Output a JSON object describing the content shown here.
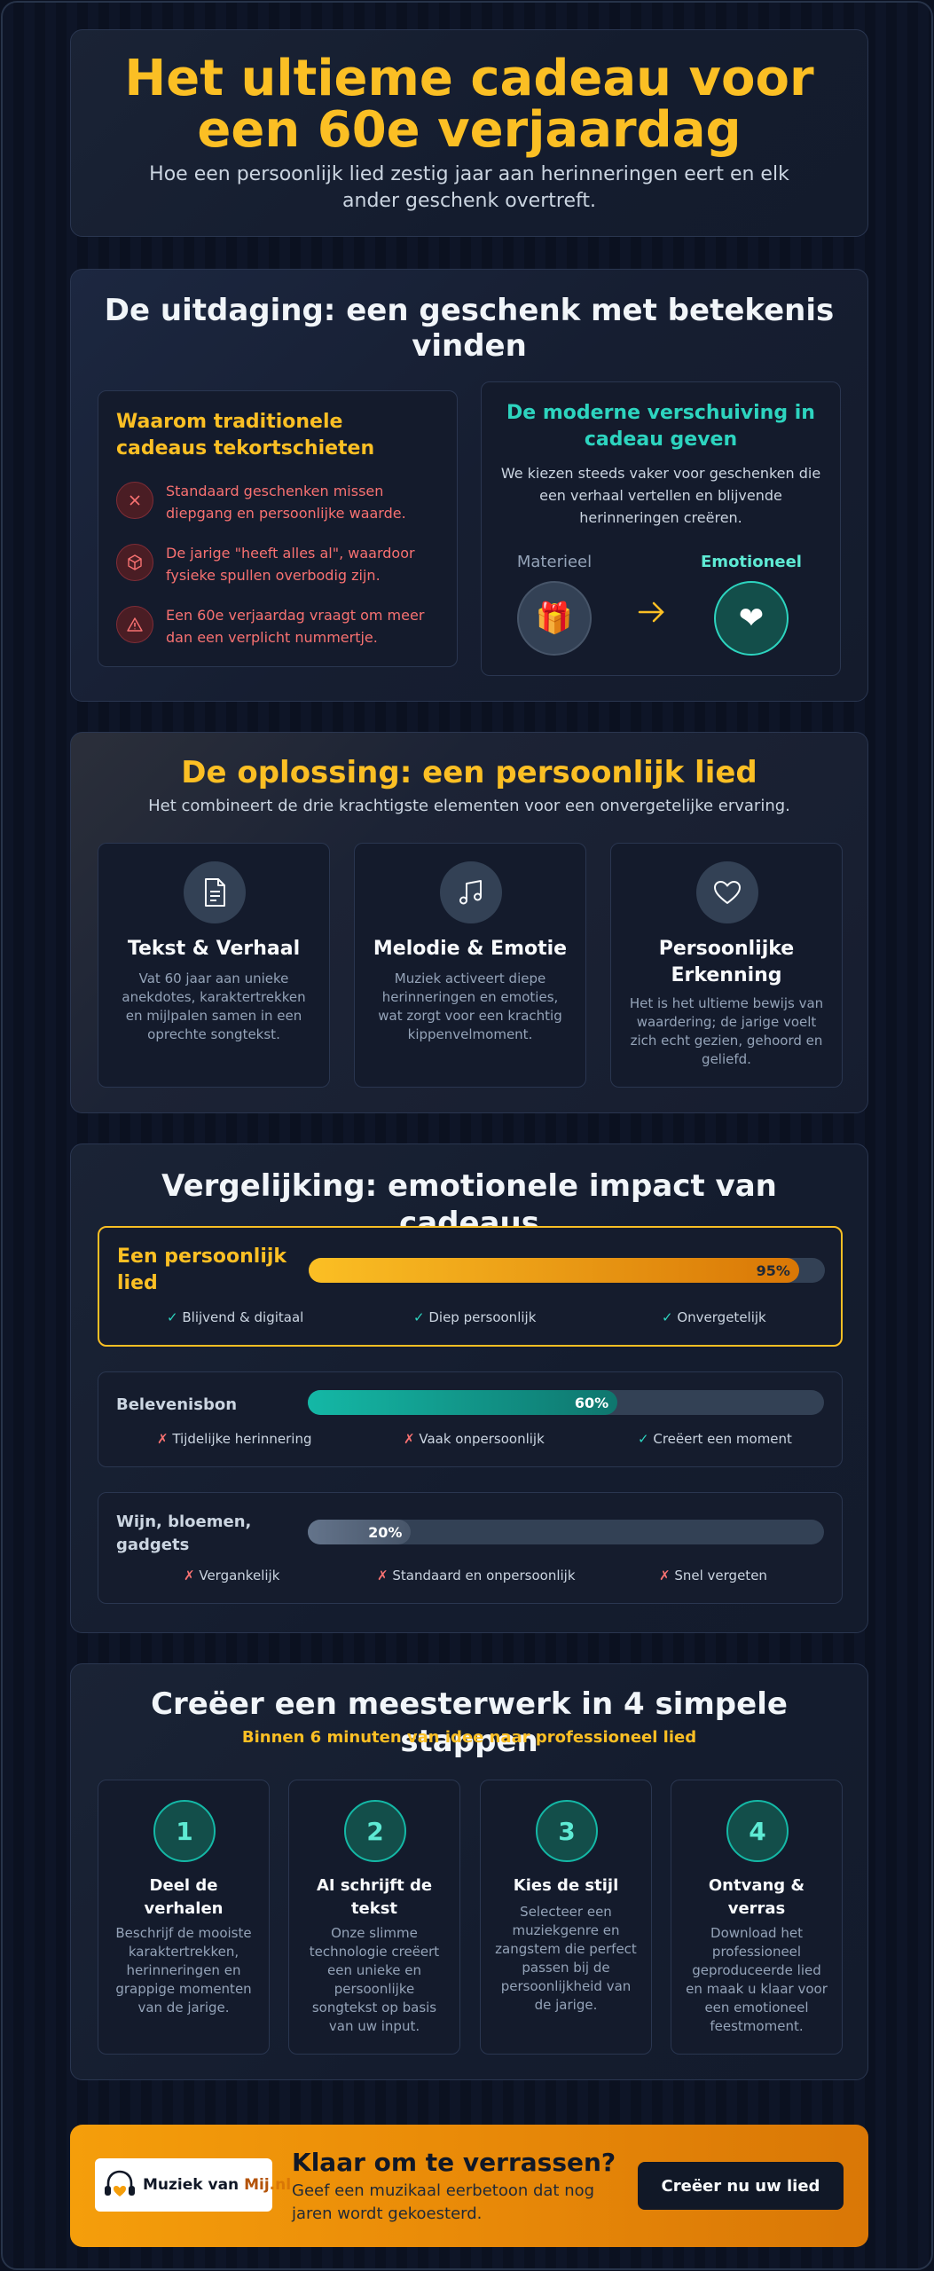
{
  "hero": {
    "title": "Het ultieme cadeau voor een 60e verjaardag",
    "subtitle": "Hoe een persoonlijk lied zestig jaar aan herinneringen eert en elk ander geschenk overtreft."
  },
  "challenge": {
    "title": "De uitdaging: een geschenk met betekenis vinden",
    "traditional": {
      "title": "Waarom traditionele cadeaus tekortschieten",
      "items": [
        {
          "icon": "x-icon",
          "text": "Standaard geschenken missen diepgang en persoonlijke waarde."
        },
        {
          "icon": "box-icon",
          "text": "De jarige \"heeft alles al\", waardoor fysieke spullen overbodig zijn."
        },
        {
          "icon": "warning-icon",
          "text": "Een 60e verjaardag vraagt om meer dan een verplicht nummertje."
        }
      ]
    },
    "modern": {
      "title": "De moderne verschuiving in cadeau geven",
      "description": "We kiezen steeds vaker voor geschenken die een verhaal vertellen en blijvende herinneringen creëren.",
      "from_label": "Materieel",
      "to_label": "Emotioneel"
    }
  },
  "solution": {
    "title": "De oplossing: een persoonlijk lied",
    "subtitle": "Het combineert de drie krachtigste elementen voor een onvergetelijke ervaring.",
    "pillars": [
      {
        "icon": "document-icon",
        "title": "Tekst & Verhaal",
        "text": "Vat 60 jaar aan unieke anekdotes, karaktertrekken en mijlpalen samen in een oprechte songtekst."
      },
      {
        "icon": "music-note-icon",
        "title": "Melodie & Emotie",
        "text": "Muziek activeert diepe herinneringen en emoties, wat zorgt voor een krachtig kippenvelmoment."
      },
      {
        "icon": "heart-icon",
        "title": "Persoonlijke Erkenning",
        "text": "Het is het ultieme bewijs van waardering; de jarige voelt zich echt gezien, gehoord en geliefd."
      }
    ]
  },
  "comparison": {
    "title": "Vergelijking: emotionele impact van cadeaus",
    "rows": [
      {
        "label": "Een persoonlijk lied",
        "value": 95,
        "value_label": "95%",
        "tags": [
          {
            "mark": "✓",
            "text": "Blijvend & digitaal"
          },
          {
            "mark": "✓",
            "text": "Diep persoonlijk"
          },
          {
            "mark": "✓",
            "text": "Onvergetelijk"
          }
        ]
      },
      {
        "label": "Belevenisbon",
        "value": 60,
        "value_label": "60%",
        "tags": [
          {
            "mark": "✗",
            "text": "Tijdelijke herinnering"
          },
          {
            "mark": "✗",
            "text": "Vaak onpersoonlijk"
          },
          {
            "mark": "✓",
            "text": "Creëert een moment"
          }
        ]
      },
      {
        "label": "Wijn, bloemen, gadgets",
        "value": 20,
        "value_label": "20%",
        "tags": [
          {
            "mark": "✗",
            "text": "Vergankelijk"
          },
          {
            "mark": "✗",
            "text": "Standaard en onpersoonlijk"
          },
          {
            "mark": "✗",
            "text": "Snel vergeten"
          }
        ]
      }
    ]
  },
  "steps": {
    "title": "Creëer een meesterwerk in 4 simpele stappen",
    "subtitle": "Binnen 6 minuten van idee naar professioneel lied",
    "items": [
      {
        "number": "1",
        "title": "Deel de verhalen",
        "text": "Beschrijf de mooiste karaktertrekken, herinneringen en grappige momenten van de jarige."
      },
      {
        "number": "2",
        "title": "AI schrijft de tekst",
        "text": "Onze slimme technologie creëert een unieke en persoonlijke songtekst op basis van uw input."
      },
      {
        "number": "3",
        "title": "Kies de stijl",
        "text": "Selecteer een muziekgenre en zangstem die perfect passen bij de persoonlijkheid van de jarige."
      },
      {
        "number": "4",
        "title": "Ontvang & verras",
        "text": "Download het professioneel geproduceerde lied en maak u klaar voor een emotioneel feestmoment."
      }
    ]
  },
  "cta": {
    "logo_text": "Muziek van ",
    "logo_mij": "Mij",
    "logo_nl": ".nl",
    "title": "Klaar om te verrassen?",
    "subtitle": "Geef een muzikaal eerbetoon dat nog jaren wordt gekoesterd.",
    "button": "Creëer nu uw lied"
  },
  "colors": {
    "accent_gold": "#fbbf24",
    "accent_teal": "#2dd4bf",
    "negative": "#f87171",
    "background": "#0b1120"
  }
}
